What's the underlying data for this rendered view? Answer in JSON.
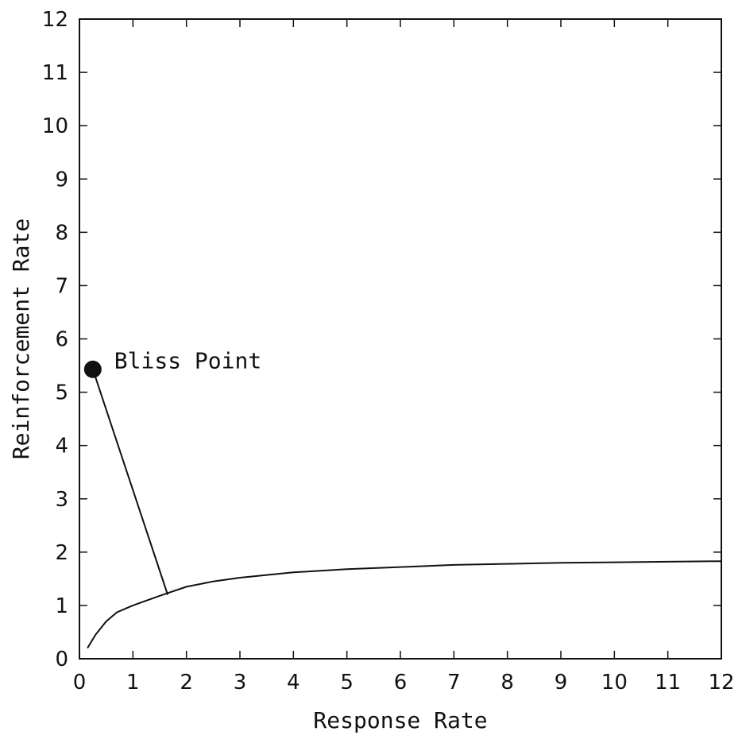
{
  "chart_data": {
    "type": "line",
    "title": "",
    "xlabel": "Response Rate",
    "ylabel": "Reinforcement Rate",
    "xlim": [
      0,
      12
    ],
    "ylim": [
      0,
      12
    ],
    "xticks": [
      0,
      1,
      2,
      3,
      4,
      5,
      6,
      7,
      8,
      9,
      10,
      11,
      12
    ],
    "yticks": [
      0,
      1,
      2,
      3,
      4,
      5,
      6,
      7,
      8,
      9,
      10,
      11,
      12
    ],
    "grid": false,
    "series": [
      {
        "name": "",
        "x": [
          0.15,
          0.3,
          0.5,
          0.7,
          1.0,
          1.5,
          2.0,
          2.5,
          3.0,
          4.0,
          5.0,
          6.0,
          7.0,
          8.0,
          9.0,
          10.0,
          11.0,
          12.0
        ],
        "y": [
          0.2,
          0.45,
          0.7,
          0.87,
          1.0,
          1.18,
          1.35,
          1.45,
          1.52,
          1.62,
          1.68,
          1.72,
          1.76,
          1.78,
          1.8,
          1.81,
          1.82,
          1.83
        ]
      }
    ],
    "bliss_point": {
      "x": 0.25,
      "y": 5.43
    },
    "connector_end": {
      "x": 1.65,
      "y": 1.2
    },
    "annotations": [
      {
        "text": "Bliss Point",
        "x": 0.65,
        "y": 5.6
      }
    ]
  }
}
